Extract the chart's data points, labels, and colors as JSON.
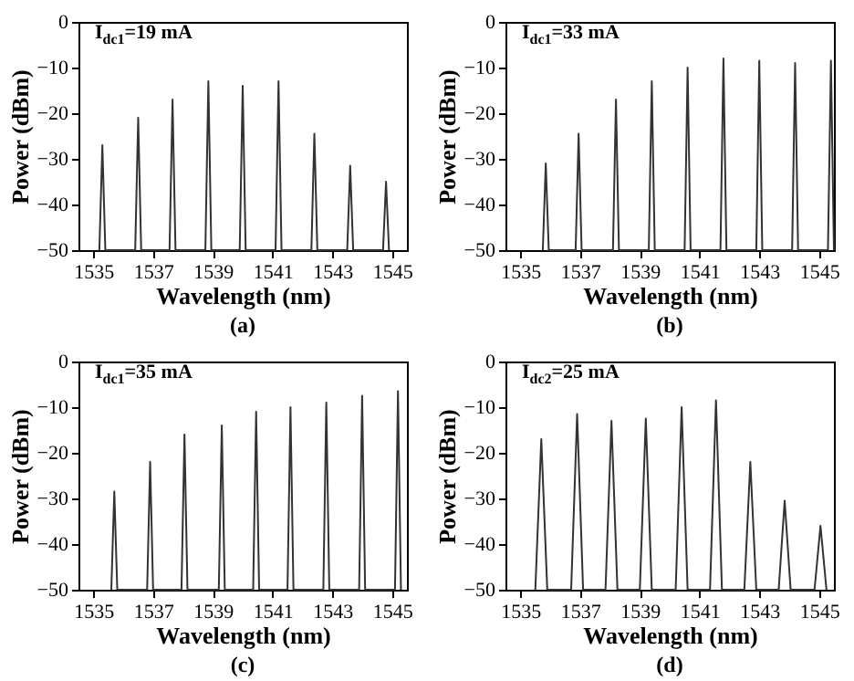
{
  "chart_data": [
    {
      "type": "line",
      "title": "(a)",
      "xlabel": "Wavelength (nm)",
      "ylabel": "Power (dBm)",
      "annotations": [
        "I$_{dc1}$=19 mA"
      ],
      "color": "#333333",
      "grid": false,
      "marker": "none",
      "xlim": [
        1534.5,
        1545.5
      ],
      "ylim": [
        -50,
        0
      ],
      "xticks": [
        1535,
        1537,
        1539,
        1541,
        1543,
        1545
      ],
      "yticks": [
        -50,
        -40,
        -30,
        -20,
        -10,
        0
      ],
      "x": [
        1535.2,
        1535.3,
        1535.4,
        1536.4,
        1536.5,
        1536.6,
        1537.55,
        1537.65,
        1537.75,
        1538.75,
        1538.85,
        1538.95,
        1539.9,
        1540.0,
        1540.1,
        1541.1,
        1541.2,
        1541.3,
        1542.3,
        1542.4,
        1542.5,
        1543.5,
        1543.6,
        1543.7,
        1544.7,
        1544.8,
        1544.9
      ],
      "values": [
        -50,
        -27,
        -50,
        -50,
        -21,
        -50,
        -50,
        -17,
        -50,
        -50,
        -13,
        -50,
        -50,
        -14,
        -50,
        -50,
        -13,
        -50,
        -50,
        -24.5,
        -50,
        -50,
        -31.5,
        -50,
        -50,
        -35,
        -50
      ]
    },
    {
      "type": "line",
      "title": "(b)",
      "xlabel": "Wavelength (nm)",
      "ylabel": "Power (dBm)",
      "annotations": [
        "I$_{dc1}$=33 mA"
      ],
      "color": "#333333",
      "grid": false,
      "marker": "none",
      "xlim": [
        1534.5,
        1545.5
      ],
      "ylim": [
        -50,
        0
      ],
      "xticks": [
        1535,
        1537,
        1539,
        1541,
        1543,
        1545
      ],
      "yticks": [
        -50,
        -40,
        -30,
        -20,
        -10,
        0
      ],
      "x": [
        1535.75,
        1535.85,
        1535.95,
        1536.85,
        1536.95,
        1537.05,
        1538.1,
        1538.2,
        1538.3,
        1539.3,
        1539.4,
        1539.5,
        1540.5,
        1540.6,
        1540.7,
        1541.7,
        1541.8,
        1541.9,
        1542.9,
        1543.0,
        1543.1,
        1544.1,
        1544.2,
        1544.3,
        1545.3,
        1545.4,
        1545.5
      ],
      "values": [
        -50,
        -31,
        -50,
        -50,
        -24.5,
        -50,
        -50,
        -17,
        -50,
        -50,
        -13,
        -50,
        -50,
        -10,
        -50,
        -50,
        -8,
        -50,
        -50,
        -8.5,
        -50,
        -50,
        -9,
        -50,
        -50,
        -8.5,
        -50
      ]
    },
    {
      "type": "line",
      "title": "(c)",
      "xlabel": "Wavelength (nm)",
      "ylabel": "Power (dBm)",
      "annotations": [
        "I$_{dc1}$=35 mA"
      ],
      "color": "#333333",
      "grid": false,
      "marker": "none",
      "xlim": [
        1534.5,
        1545.5
      ],
      "ylim": [
        -50,
        0
      ],
      "xticks": [
        1535,
        1537,
        1539,
        1541,
        1543,
        1545
      ],
      "yticks": [
        -50,
        -40,
        -30,
        -20,
        -10,
        0
      ],
      "x": [
        1535.6,
        1535.7,
        1535.8,
        1536.8,
        1536.9,
        1537.0,
        1537.95,
        1538.05,
        1538.15,
        1539.2,
        1539.3,
        1539.4,
        1540.35,
        1540.45,
        1540.55,
        1541.5,
        1541.6,
        1541.7,
        1542.7,
        1542.8,
        1542.9,
        1543.9,
        1544.0,
        1544.1,
        1545.1,
        1545.2,
        1545.3
      ],
      "values": [
        -50,
        -28.5,
        -50,
        -50,
        -22,
        -50,
        -50,
        -16,
        -50,
        -50,
        -14,
        -50,
        -50,
        -11,
        -50,
        -50,
        -10,
        -50,
        -50,
        -9,
        -50,
        -50,
        -7.5,
        -50,
        -50,
        -6.5,
        -50
      ]
    },
    {
      "type": "line",
      "title": "(d)",
      "xlabel": "Wavelength (nm)",
      "ylabel": "Power (dBm)",
      "annotations": [
        "I$_{dc2}$=25 mA"
      ],
      "color": "#333333",
      "grid": false,
      "marker": "none",
      "xlim": [
        1534.5,
        1545.5
      ],
      "ylim": [
        -50,
        0
      ],
      "xticks": [
        1535,
        1537,
        1539,
        1541,
        1543,
        1545
      ],
      "yticks": [
        -50,
        -40,
        -30,
        -20,
        -10,
        0
      ],
      "x": [
        1535.5,
        1535.7,
        1535.9,
        1536.7,
        1536.9,
        1537.1,
        1537.85,
        1538.05,
        1538.25,
        1539.0,
        1539.2,
        1539.4,
        1540.2,
        1540.4,
        1540.6,
        1541.35,
        1541.55,
        1541.75,
        1542.5,
        1542.7,
        1542.9,
        1543.65,
        1543.85,
        1544.05,
        1544.85,
        1545.05,
        1545.25
      ],
      "values": [
        -50,
        -17,
        -50,
        -50,
        -11.5,
        -50,
        -50,
        -13,
        -50,
        -50,
        -12.5,
        -50,
        -50,
        -10,
        -50,
        -50,
        -8.5,
        -50,
        -50,
        -22,
        -50,
        -50,
        -30.5,
        -50,
        -50,
        -36,
        -50
      ]
    }
  ]
}
